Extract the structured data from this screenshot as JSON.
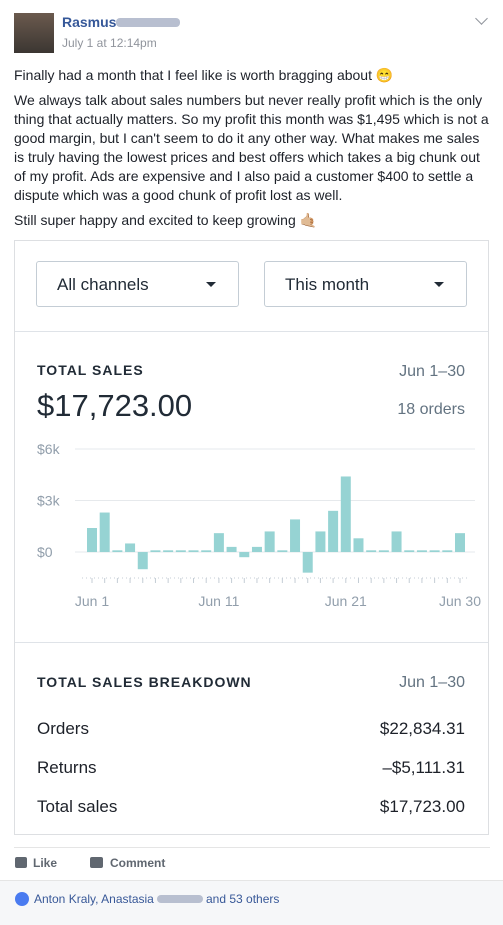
{
  "post": {
    "author": "Rasmus",
    "timestamp": "July 1 at 12:14pm",
    "paragraphs": [
      "Finally had a month that I feel like is worth bragging about 😁",
      "We always talk about sales numbers but never really profit which is the only thing that actually matters. So my profit this month was $1,495 which is not a good margin, but I can't seem to do it any other way. What makes me sales is truly having the lowest prices and best offers which takes a big chunk out of my profit. Ads are expensive and I also paid a customer $400 to settle a dispute which was a good chunk of profit lost as well.",
      "Still super happy and excited to keep growing 🤙🏼"
    ],
    "actions": [
      "Like",
      "Comment"
    ],
    "reactions": {
      "names": "Anton Kraly, Anastasia",
      "others": "and 53 others"
    }
  },
  "dashboard": {
    "filters": [
      "All channels",
      "This month"
    ],
    "total_sales": {
      "title": "TOTAL SALES",
      "period": "Jun 1–30",
      "amount": "$17,723.00",
      "orders": "18 orders"
    },
    "breakdown": {
      "title": "TOTAL SALES BREAKDOWN",
      "period": "Jun 1–30",
      "rows": [
        [
          "Orders",
          "$22,834.31"
        ],
        [
          "Returns",
          "–$5,111.31"
        ],
        [
          "Total sales",
          "$17,723.00"
        ]
      ]
    }
  },
  "chart_data": {
    "type": "bar",
    "categories": [
      "Jun 1",
      null,
      null,
      null,
      null,
      null,
      null,
      null,
      null,
      null,
      "Jun 11",
      null,
      null,
      null,
      null,
      null,
      null,
      null,
      null,
      null,
      "Jun 21",
      null,
      null,
      null,
      null,
      null,
      null,
      null,
      null,
      "Jun 30"
    ],
    "values": [
      1400,
      2300,
      100,
      500,
      -1000,
      100,
      100,
      100,
      100,
      100,
      1100,
      300,
      -300,
      300,
      1200,
      100,
      1900,
      -1200,
      1200,
      2400,
      4400,
      800,
      100,
      100,
      1200,
      100,
      100,
      100,
      100,
      1100
    ],
    "color": "#96d3d3",
    "ylim": [
      -1500,
      6000
    ],
    "yticks": [
      {
        "value": 0,
        "label": "$0"
      },
      {
        "value": 3000,
        "label": "$3k"
      },
      {
        "value": 6000,
        "label": "$6k"
      }
    ],
    "grid": true
  }
}
